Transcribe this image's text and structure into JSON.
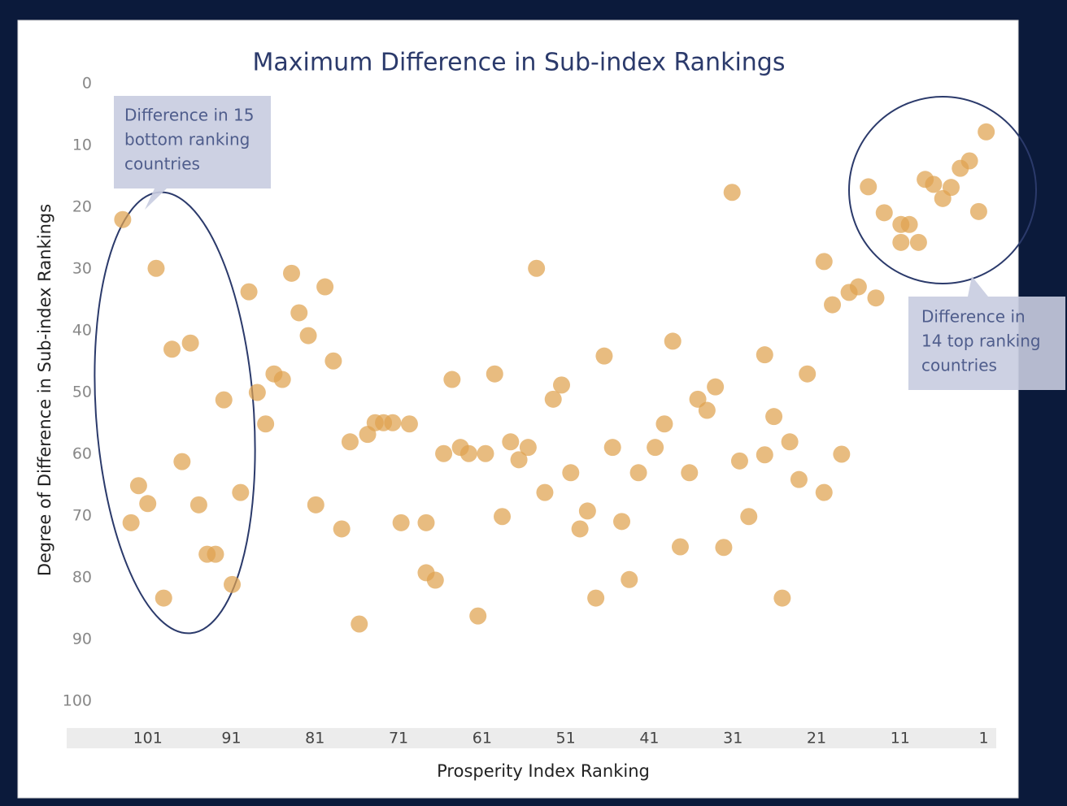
{
  "chart_data": {
    "type": "scatter",
    "title": "Maximum Difference in Sub-index Rankings",
    "xlabel": "Prosperity Index Ranking",
    "ylabel": "Degree of Difference in Sub-index Rankings",
    "color": "#dfa24f",
    "xlim": [
      110.7,
      -0.5
    ],
    "xticks": [
      101,
      91,
      81,
      71,
      61,
      51,
      41,
      31,
      21,
      11,
      1
    ],
    "ylim": [
      100,
      0
    ],
    "yticks": [
      0,
      10,
      20,
      30,
      40,
      50,
      60,
      70,
      80,
      90,
      100
    ],
    "annotations": [
      {
        "lines": [
          "Difference in 15",
          "bottom ranking",
          "countries"
        ]
      },
      {
        "lines": [
          "Difference in",
          "14 top ranking",
          "countries"
        ]
      }
    ],
    "x": [
      104.0,
      100.0,
      102.1,
      103.0,
      101.0,
      98.1,
      95.9,
      96.9,
      94.9,
      99.1,
      93.9,
      92.9,
      91.9,
      90.9,
      89.9,
      88.9,
      87.9,
      86.9,
      85.9,
      84.9,
      83.8,
      82.9,
      81.8,
      79.8,
      80.9,
      78.8,
      77.8,
      76.8,
      75.7,
      74.7,
      73.8,
      72.8,
      71.7,
      70.7,
      69.7,
      67.7,
      67.7,
      66.6,
      65.6,
      64.6,
      63.6,
      62.6,
      61.5,
      60.6,
      59.5,
      58.6,
      57.6,
      56.6,
      55.5,
      54.5,
      53.5,
      52.5,
      51.5,
      50.4,
      49.3,
      48.4,
      47.4,
      46.4,
      45.4,
      44.3,
      43.4,
      42.3,
      40.3,
      39.2,
      38.2,
      37.3,
      36.2,
      35.2,
      34.1,
      33.1,
      32.1,
      31.1,
      30.2,
      29.1,
      27.2,
      27.2,
      26.1,
      25.1,
      24.2,
      23.1,
      22.1,
      20.1,
      20.1,
      19.1,
      18.0,
      17.1,
      16.0,
      13.9,
      14.8,
      12.9,
      10.9,
      9.9,
      10.9,
      8.8,
      8.0,
      7.0,
      5.9,
      4.9,
      3.8,
      2.7,
      1.6,
      0.7
    ],
    "values": [
      22.0,
      29.9,
      65.1,
      71.1,
      68.0,
      43.0,
      42.0,
      61.2,
      68.2,
      83.3,
      76.2,
      76.2,
      51.2,
      81.1,
      66.2,
      33.7,
      50.0,
      55.1,
      47.0,
      47.9,
      30.7,
      37.1,
      40.8,
      32.9,
      68.2,
      44.9,
      72.1,
      58.0,
      87.5,
      56.8,
      54.9,
      54.9,
      54.9,
      71.1,
      55.1,
      71.1,
      79.2,
      80.4,
      59.9,
      47.9,
      58.9,
      59.9,
      86.2,
      59.9,
      47.0,
      70.1,
      58.0,
      60.9,
      58.9,
      29.9,
      66.2,
      51.1,
      48.8,
      63.0,
      72.1,
      69.2,
      83.3,
      44.1,
      58.9,
      70.9,
      80.3,
      63.0,
      58.9,
      55.1,
      41.7,
      75.0,
      63.0,
      51.1,
      52.9,
      49.1,
      75.1,
      17.6,
      61.1,
      70.1,
      43.9,
      60.1,
      53.9,
      83.3,
      58.0,
      64.1,
      47.0,
      66.2,
      28.8,
      35.8,
      60.0,
      33.8,
      32.9,
      34.7,
      16.7,
      20.9,
      22.8,
      22.8,
      25.7,
      25.7,
      15.5,
      16.3,
      18.6,
      16.8,
      13.7,
      12.5,
      20.7,
      7.8
    ]
  }
}
